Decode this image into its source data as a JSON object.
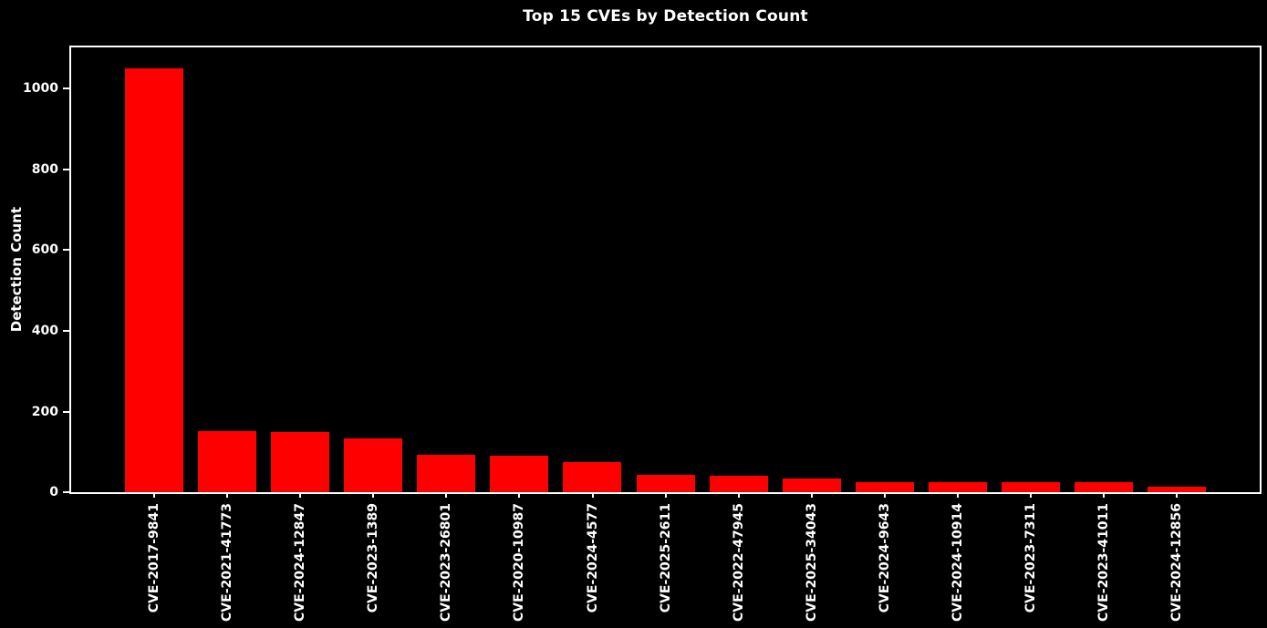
{
  "figure": {
    "title": "Top 15 CVEs by Detection Count",
    "background_color": "#000000",
    "text_color": "#ffffff",
    "axis_color": "#ffffff"
  },
  "chart_data": {
    "type": "bar",
    "title": "Top 15 CVEs by Detection Count",
    "xlabel": "",
    "ylabel": "Detection Count",
    "categories": [
      "CVE-2017-9841",
      "CVE-2021-41773",
      "CVE-2024-12847",
      "CVE-2023-1389",
      "CVE-2023-26801",
      "CVE-2020-10987",
      "CVE-2024-4577",
      "CVE-2025-2611",
      "CVE-2022-47945",
      "CVE-2025-34043",
      "CVE-2024-9643",
      "CVE-2024-10914",
      "CVE-2023-7311",
      "CVE-2023-41011",
      "CVE-2024-12856"
    ],
    "values": [
      1050,
      152,
      150,
      133,
      92,
      90,
      74,
      42,
      40,
      34,
      26,
      26,
      25,
      25,
      13
    ],
    "yticks": [
      0,
      200,
      400,
      600,
      800,
      1000
    ],
    "ylim": [
      0,
      1102.5
    ],
    "bar_color": "#ff0000",
    "background": "#000000",
    "grid": false,
    "legend": null,
    "x_tick_rotation": 90
  }
}
